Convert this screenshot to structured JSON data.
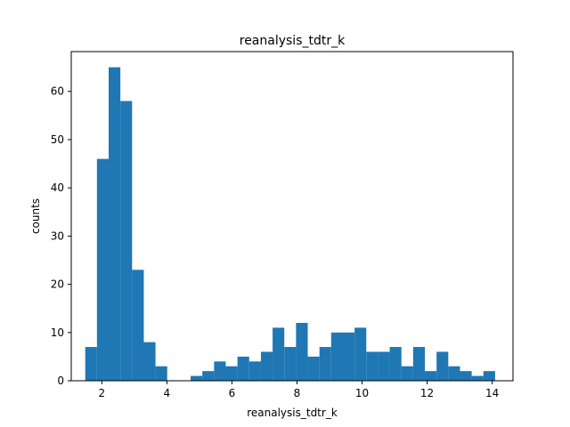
{
  "chart_data": {
    "type": "bar",
    "title": "reanalysis_tdtr_k",
    "xlabel": "reanalysis_tdtr_k",
    "ylabel": "counts",
    "xlim": [
      1.06,
      14.64
    ],
    "ylim": [
      0,
      68.25
    ],
    "xticks": [
      2,
      4,
      6,
      8,
      10,
      12,
      14
    ],
    "yticks": [
      0,
      10,
      20,
      30,
      40,
      50,
      60
    ],
    "bar_color": "#1f77b4",
    "bins": [
      {
        "x0": 1.49,
        "x1": 1.85,
        "count": 7
      },
      {
        "x0": 1.85,
        "x1": 2.21,
        "count": 46
      },
      {
        "x0": 2.21,
        "x1": 2.57,
        "count": 65
      },
      {
        "x0": 2.57,
        "x1": 2.93,
        "count": 58
      },
      {
        "x0": 2.93,
        "x1": 3.29,
        "count": 23
      },
      {
        "x0": 3.29,
        "x1": 3.65,
        "count": 8
      },
      {
        "x0": 3.65,
        "x1": 4.01,
        "count": 3
      },
      {
        "x0": 4.01,
        "x1": 4.37,
        "count": 0
      },
      {
        "x0": 4.37,
        "x1": 4.73,
        "count": 0
      },
      {
        "x0": 4.73,
        "x1": 5.09,
        "count": 1
      },
      {
        "x0": 5.09,
        "x1": 5.45,
        "count": 2
      },
      {
        "x0": 5.45,
        "x1": 5.81,
        "count": 4
      },
      {
        "x0": 5.81,
        "x1": 6.17,
        "count": 3
      },
      {
        "x0": 6.17,
        "x1": 6.53,
        "count": 5
      },
      {
        "x0": 6.53,
        "x1": 6.89,
        "count": 4
      },
      {
        "x0": 6.89,
        "x1": 7.25,
        "count": 6
      },
      {
        "x0": 7.25,
        "x1": 7.61,
        "count": 11
      },
      {
        "x0": 7.61,
        "x1": 7.97,
        "count": 7
      },
      {
        "x0": 7.97,
        "x1": 8.33,
        "count": 12
      },
      {
        "x0": 8.33,
        "x1": 8.69,
        "count": 5
      },
      {
        "x0": 8.69,
        "x1": 9.05,
        "count": 7
      },
      {
        "x0": 9.05,
        "x1": 9.41,
        "count": 10
      },
      {
        "x0": 9.41,
        "x1": 9.77,
        "count": 10
      },
      {
        "x0": 9.77,
        "x1": 10.13,
        "count": 11
      },
      {
        "x0": 10.13,
        "x1": 10.49,
        "count": 6
      },
      {
        "x0": 10.49,
        "x1": 10.85,
        "count": 6
      },
      {
        "x0": 10.85,
        "x1": 11.21,
        "count": 7
      },
      {
        "x0": 11.21,
        "x1": 11.57,
        "count": 3
      },
      {
        "x0": 11.57,
        "x1": 11.93,
        "count": 7
      },
      {
        "x0": 11.93,
        "x1": 12.29,
        "count": 2
      },
      {
        "x0": 12.29,
        "x1": 12.65,
        "count": 6
      },
      {
        "x0": 12.65,
        "x1": 13.01,
        "count": 3
      },
      {
        "x0": 13.01,
        "x1": 13.37,
        "count": 2
      },
      {
        "x0": 13.37,
        "x1": 13.73,
        "count": 1
      },
      {
        "x0": 13.73,
        "x1": 14.09,
        "count": 2
      }
    ]
  }
}
